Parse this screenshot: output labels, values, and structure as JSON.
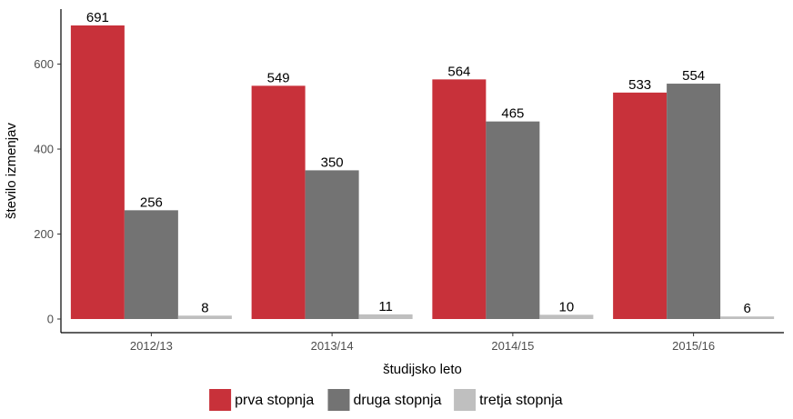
{
  "chart_data": {
    "type": "bar",
    "categories": [
      "2012/13",
      "2013/14",
      "2014/15",
      "2015/16"
    ],
    "series": [
      {
        "name": "prva stopnja",
        "values": [
          691,
          549,
          564,
          533
        ],
        "color": "#c8313a"
      },
      {
        "name": "druga stopnja",
        "values": [
          256,
          350,
          465,
          554
        ],
        "color": "#737373"
      },
      {
        "name": "tretja stopnja",
        "values": [
          8,
          11,
          10,
          6
        ],
        "color": "#bfbfbf"
      }
    ],
    "xlabel": "študijsko leto",
    "ylabel": "število izmenjav",
    "ylim": [
      0,
      715
    ],
    "yticks": [
      0,
      200,
      400,
      600
    ],
    "grid": false,
    "legend_position": "bottom",
    "data_labels": true
  }
}
